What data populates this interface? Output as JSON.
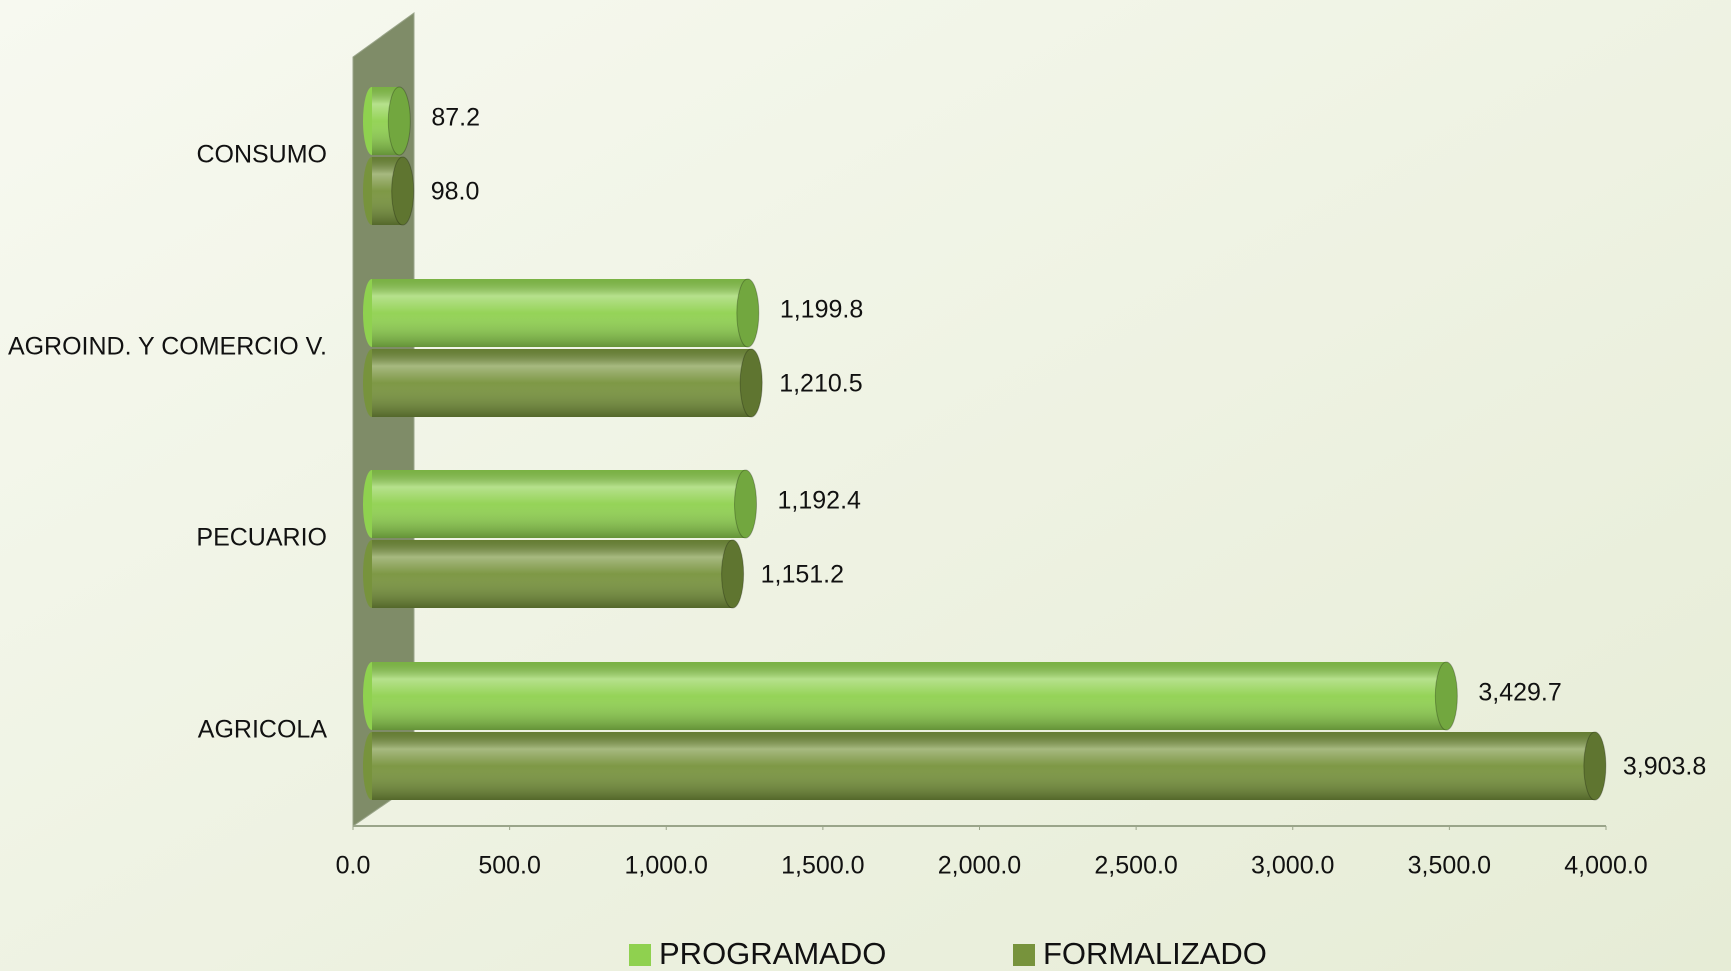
{
  "chart_data": {
    "type": "bar",
    "orientation": "horizontal",
    "categories": [
      "CONSUMO",
      "AGROIND. Y COMERCIO V.",
      "PECUARIO",
      "AGRICOLA"
    ],
    "series": [
      {
        "name": "PROGRAMADO",
        "color": "#8fd14f",
        "values": [
          87.2,
          1199.8,
          1192.4,
          3429.7
        ],
        "value_labels": [
          "87.2",
          "1,199.8",
          "1,192.4",
          "3,429.7"
        ]
      },
      {
        "name": "FORMALIZADO",
        "color": "#77933c",
        "values": [
          98.0,
          1210.5,
          1151.2,
          3903.8
        ],
        "value_labels": [
          "98.0",
          "1,210.5",
          "1,151.2",
          "3,903.8"
        ]
      }
    ],
    "xlim": [
      0,
      4000
    ],
    "xticks": [
      {
        "value": 0,
        "label": "0.0"
      },
      {
        "value": 500,
        "label": "500.0"
      },
      {
        "value": 1000,
        "label": "1,000.0"
      },
      {
        "value": 1500,
        "label": "1,500.0"
      },
      {
        "value": 2000,
        "label": "2,000.0"
      },
      {
        "value": 2500,
        "label": "2,500.0"
      },
      {
        "value": 3000,
        "label": "3,000.0"
      },
      {
        "value": 3500,
        "label": "3,500.0"
      },
      {
        "value": 4000,
        "label": "4,000.0"
      }
    ],
    "legend": "bottom"
  }
}
